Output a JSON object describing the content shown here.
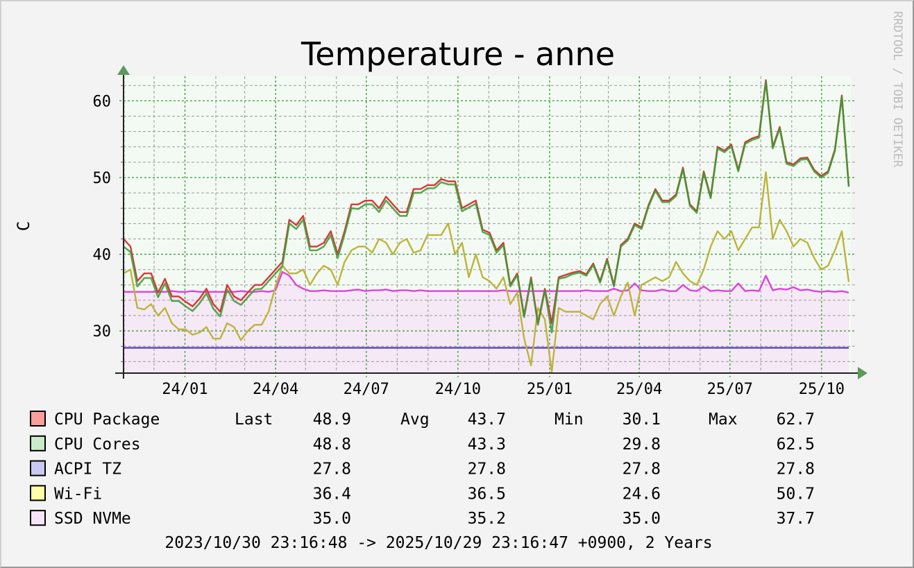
{
  "chart_data": {
    "type": "line",
    "title": "Temperature - anne",
    "ylabel": "C",
    "watermark": "RRDTOOL / TOBI OETIKER",
    "ylim": [
      24.5,
      63.2
    ],
    "yticks": [
      30,
      40,
      50,
      60
    ],
    "y_minor_step": 2,
    "grid": true,
    "x_start": "2023-10-30T23:16:48",
    "x_end": "2025-10-29T23:16:47",
    "xticks": [
      {
        "date": "2024-01-01",
        "label": "24/01"
      },
      {
        "date": "2024-04-01",
        "label": "24/04"
      },
      {
        "date": "2024-07-01",
        "label": "24/07"
      },
      {
        "date": "2024-10-01",
        "label": "24/10"
      },
      {
        "date": "2025-01-01",
        "label": "25/01"
      },
      {
        "date": "2025-04-01",
        "label": "25/04"
      },
      {
        "date": "2025-07-01",
        "label": "25/07"
      },
      {
        "date": "2025-10-01",
        "label": "25/10"
      }
    ],
    "colors": {
      "background": "#f3f3f3",
      "canvas_upper": "#f3faf3",
      "ssd_area": "#f6e9f6",
      "major_grid": "#3a9a3a",
      "minor_grid": "#999999",
      "arrow": "#5a9a5a"
    },
    "series": [
      {
        "name": "CPU Package",
        "line": "#d83838",
        "swatch": "#ff9c9c",
        "values": [
          42,
          41,
          36.5,
          37.5,
          37.5,
          35,
          36.8,
          34.5,
          34.5,
          33.8,
          33.2,
          34.2,
          35.5,
          33.5,
          32.5,
          36,
          34.5,
          34,
          35,
          36,
          36,
          37,
          38,
          39,
          44.5,
          43.8,
          45,
          41,
          41,
          41.5,
          43,
          40,
          43,
          46.5,
          46.5,
          47,
          47,
          46,
          47.5,
          46.5,
          45.5,
          45.5,
          48.5,
          48.5,
          49,
          49,
          49.8,
          49.5,
          49.5,
          46,
          46.5,
          47,
          43.2,
          42.8,
          40.5,
          41.5,
          36,
          37.5,
          32,
          37,
          31,
          35.5,
          31,
          37,
          37.3,
          37.6,
          37.8,
          37.4,
          38.8,
          36.5,
          39.4,
          36,
          41.2,
          42,
          44,
          43.5,
          46.4,
          48.5,
          47,
          47,
          47.8,
          51.3,
          46.5,
          45.6,
          50.8,
          47.5,
          54,
          53.5,
          54.3,
          51,
          54.6,
          55.1,
          55.4,
          62.7,
          54,
          56.6,
          52,
          51.7,
          52.5,
          52.6,
          51,
          50.2,
          50.8,
          53.7,
          60.7,
          48.9
        ],
        "last": "48.9",
        "avg": "43.7",
        "min": "30.1",
        "max": "62.7"
      },
      {
        "name": "CPU Cores",
        "line": "#3c9a32",
        "swatch": "#c8ecc8",
        "values": [
          41,
          40.3,
          35.8,
          36.9,
          36.9,
          34.4,
          36.2,
          33.9,
          33.9,
          33.2,
          32.6,
          33.6,
          34.9,
          32.9,
          31.9,
          35.4,
          33.9,
          33.4,
          34.4,
          35.4,
          35.5,
          36.5,
          37.5,
          38.5,
          44,
          43.3,
          44.5,
          40.5,
          40.5,
          41,
          42.5,
          39.5,
          42.6,
          46,
          45.9,
          46.5,
          46.5,
          45.5,
          47,
          46,
          45,
          45,
          48,
          48,
          48.6,
          48.6,
          49.4,
          49.1,
          49.1,
          45.6,
          46.1,
          46.6,
          42.9,
          42.5,
          40.2,
          41.2,
          35.8,
          37.3,
          31.8,
          36.8,
          30.8,
          35.3,
          29.8,
          36.8,
          37,
          37.4,
          37.6,
          37.2,
          38.6,
          36.3,
          39.2,
          35.8,
          41,
          41.8,
          43.8,
          43.3,
          46.2,
          48.3,
          46.8,
          46.8,
          47.6,
          51.1,
          46.3,
          45.4,
          50.6,
          47.3,
          53.8,
          53.3,
          54.1,
          50.8,
          54.4,
          54.9,
          55.2,
          62.5,
          53.8,
          56.4,
          51.8,
          51.5,
          52.3,
          52.4,
          50.8,
          50,
          50.6,
          53.5,
          60.5,
          48.8
        ],
        "last": "48.8",
        "avg": "43.3",
        "min": "29.8",
        "max": "62.5"
      },
      {
        "name": "ACPI TZ",
        "line": "#5a4cc0",
        "swatch": "#c8c8f0",
        "values": [
          27.8,
          27.8
        ],
        "last": "27.8",
        "avg": "27.8",
        "min": "27.8",
        "max": "27.8"
      },
      {
        "name": "Wi-Fi",
        "line": "#bcb43a",
        "swatch": "#ffffa8",
        "values": [
          37.5,
          38,
          33,
          32.8,
          33.5,
          32,
          33,
          31,
          30.2,
          30.2,
          29.5,
          29.8,
          30.5,
          29,
          29,
          31,
          30.5,
          28.8,
          30,
          30.8,
          30.8,
          32.5,
          35.8,
          38.5,
          37.5,
          37.5,
          38,
          36,
          37.5,
          38.5,
          38,
          36,
          39,
          40.5,
          41,
          41,
          40.2,
          42,
          41.5,
          40,
          41.5,
          42,
          40.2,
          40.5,
          42.5,
          42.5,
          42.5,
          44,
          40,
          41.5,
          37,
          40,
          37,
          36.5,
          35.5,
          37,
          33.5,
          35,
          29,
          25.5,
          33,
          31.5,
          24.6,
          33,
          32.5,
          32.5,
          32.5,
          32,
          31.5,
          33.5,
          34.5,
          32,
          34.5,
          36.3,
          32,
          36,
          36.5,
          37,
          36.5,
          37,
          39,
          37.5,
          36.5,
          36,
          38,
          41,
          43,
          42,
          43,
          40.5,
          42,
          43.5,
          43.5,
          50.7,
          42,
          44.5,
          43,
          41,
          42,
          41.5,
          39.5,
          38,
          38.5,
          40.5,
          43,
          36.4
        ],
        "last": "36.4",
        "avg": "36.5",
        "min": "24.6",
        "max": "50.7"
      },
      {
        "name": "SSD NVMe",
        "line": "#e040e0",
        "swatch": "#f8e4f8",
        "values": [
          35.1,
          35.1,
          35.1,
          35.1,
          35.1,
          35.1,
          35.1,
          35.2,
          35.1,
          35.1,
          35.2,
          35.1,
          35.1,
          35.1,
          35.1,
          35.1,
          35.1,
          35.2,
          35.1,
          35.1,
          35.2,
          35.1,
          35.3,
          37.7,
          37.2,
          36,
          35.5,
          35.2,
          35.2,
          35.3,
          35.2,
          35.2,
          35.2,
          35.3,
          35.4,
          35.2,
          35.3,
          35.3,
          35.4,
          35.2,
          35.3,
          35.3,
          35.2,
          35.3,
          35.2,
          35.2,
          35.2,
          35.2,
          35.2,
          35.2,
          35.2,
          35.2,
          35.2,
          35.2,
          35.2,
          35.3,
          35.2,
          35.2,
          35.2,
          35.2,
          35.2,
          35.2,
          35.2,
          35.2,
          35.2,
          35.2,
          35.2,
          35.3,
          35.2,
          35.2,
          35.2,
          35.5,
          35.2,
          35.3,
          36.2,
          35.3,
          35.2,
          35.2,
          35.4,
          35.2,
          35.2,
          36,
          35.3,
          35.2,
          35.8,
          35.2,
          35.3,
          35.2,
          35.2,
          36.2,
          35.2,
          35.3,
          35.2,
          37.2,
          35.3,
          35.5,
          35.4,
          35.7,
          35.3,
          35.4,
          35.2,
          35.1,
          35.2,
          35.1,
          35.2,
          35.0
        ],
        "last": "35.0",
        "avg": "35.2",
        "min": "35.0",
        "max": "37.7"
      }
    ]
  },
  "legend": {
    "last_label": "Last",
    "avg_label": "Avg",
    "min_label": "Min",
    "max_label": "Max"
  },
  "footer": "2023/10/30 23:16:48 -> 2025/10/29 23:16:47 +0900, 2 Years"
}
